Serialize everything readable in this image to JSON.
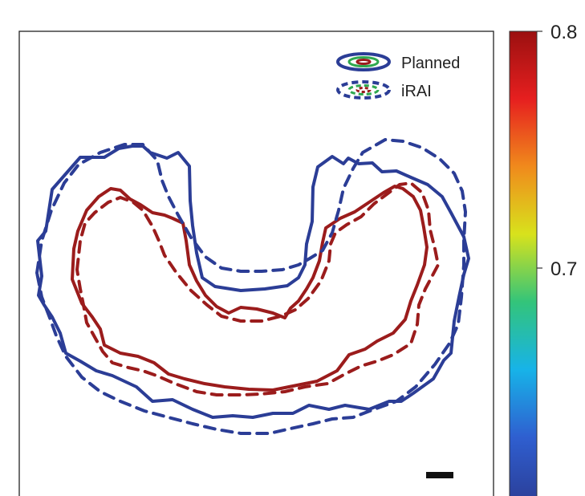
{
  "chart_data": {
    "type": "contour",
    "title": "",
    "xlabel": "",
    "ylabel": "",
    "legend": {
      "placement": "top-right",
      "entries": [
        {
          "label": "Planned",
          "line_style": "solid"
        },
        {
          "label": "iRAI",
          "line_style": "dashed"
        }
      ]
    },
    "series": [
      {
        "name": "Planned",
        "level": "outer",
        "color": "#2b3d96",
        "line_style": "solid"
      },
      {
        "name": "Planned",
        "level": "inner",
        "color": "#9b1c1c",
        "line_style": "solid"
      },
      {
        "name": "iRAI",
        "level": "outer",
        "color": "#2b3d96",
        "line_style": "dashed"
      },
      {
        "name": "iRAI",
        "level": "inner",
        "color": "#9b1c1c",
        "line_style": "dashed"
      }
    ],
    "colorbar": {
      "colormap": "jet",
      "range": [
        0.6,
        0.8
      ],
      "ticks": [
        {
          "value": 0.8,
          "label": "0.8"
        },
        {
          "value": 0.7,
          "label": "0.7"
        }
      ],
      "colors": [
        "#2b3d96",
        "#2f5fd0",
        "#17b3e8",
        "#33c47a",
        "#d8e21c",
        "#f08a1c",
        "#e61f1f",
        "#9b1010"
      ]
    },
    "scale_bar": true,
    "grid": false
  }
}
